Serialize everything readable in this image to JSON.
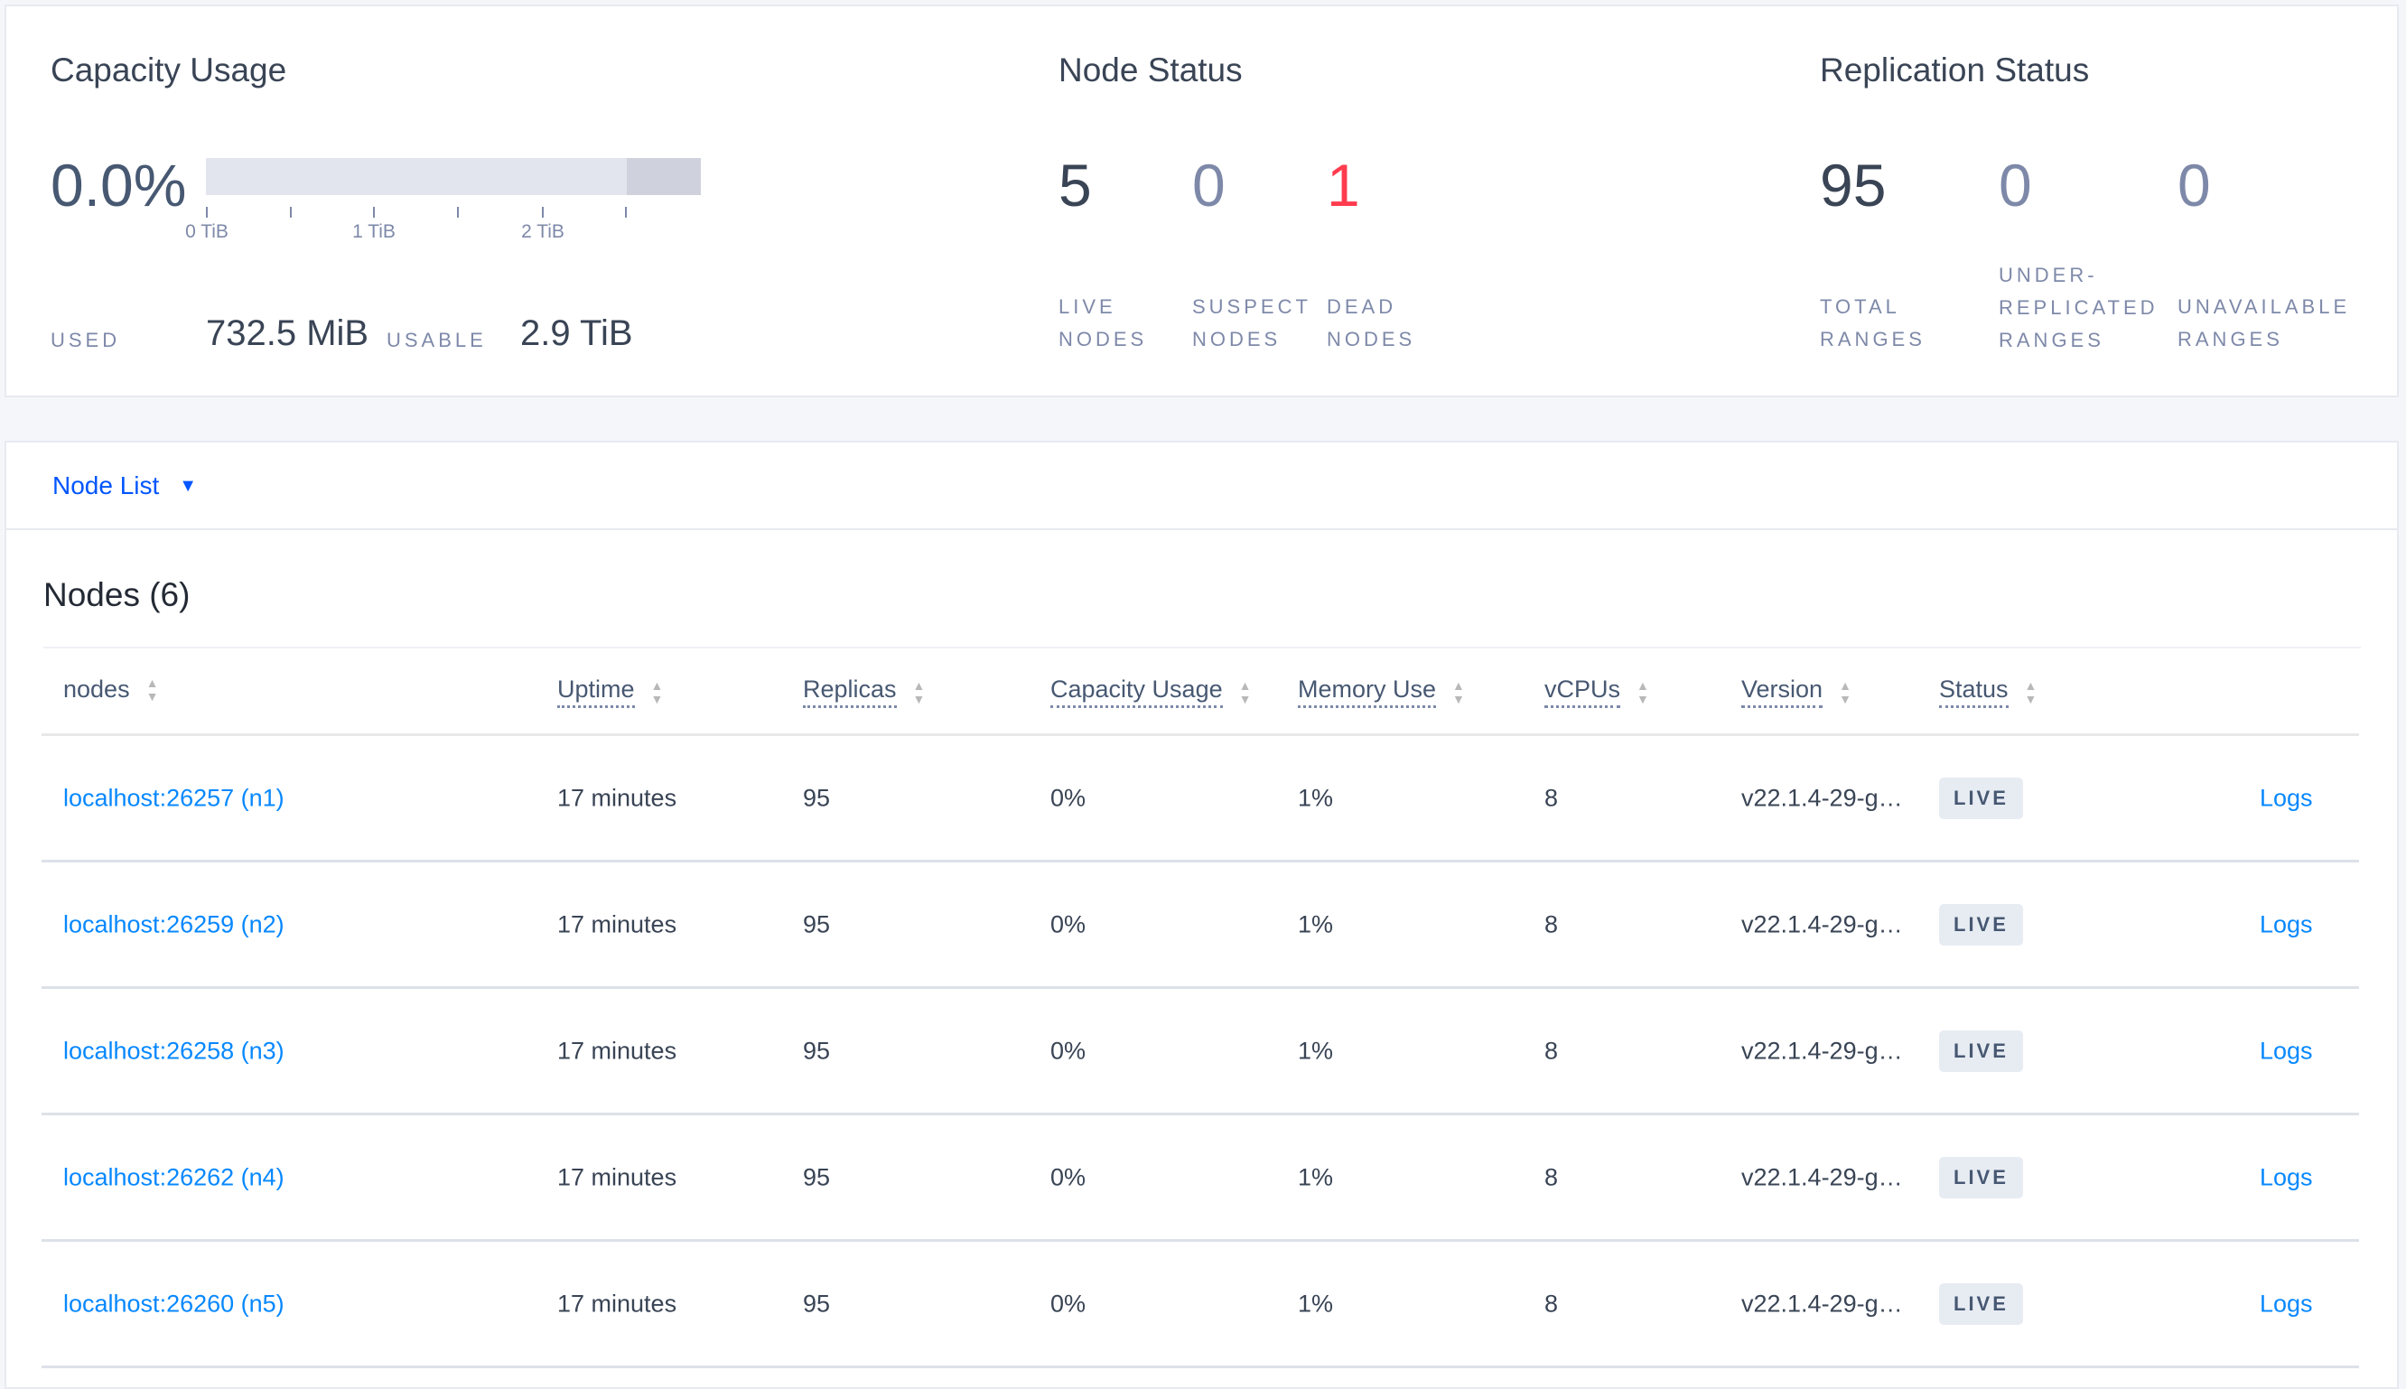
{
  "capacity": {
    "title": "Capacity Usage",
    "percent": "0.0%",
    "used_fraction": 0.0,
    "ticks": [
      "0 TiB",
      "1 TiB",
      "2 TiB"
    ],
    "used_label": "USED",
    "used_value": "732.5 MiB",
    "usable_label": "USABLE",
    "usable_value": "2.9 TiB"
  },
  "node_status": {
    "title": "Node Status",
    "live": "5",
    "live_l1": "LIVE",
    "live_l2": "NODES",
    "suspect": "0",
    "suspect_l1": "SUSPECT",
    "suspect_l2": "NODES",
    "dead": "1",
    "dead_l1": "DEAD",
    "dead_l2": "NODES",
    "dead_color": "#ff3b4e"
  },
  "replication": {
    "title": "Replication Status",
    "total": "95",
    "total_l1": "TOTAL",
    "total_l2": "RANGES",
    "under": "0",
    "under_l1": "UNDER-",
    "under_l2": "REPLICATED",
    "under_l3": "RANGES",
    "unavail": "0",
    "unavail_l1": "UNAVAILABLE",
    "unavail_l2": "RANGES"
  },
  "node_list": {
    "dropdown": "Node List",
    "heading": "Nodes (6)",
    "columns": [
      "nodes",
      "Uptime",
      "Replicas",
      "Capacity Usage",
      "Memory Use",
      "vCPUs",
      "Version",
      "Status"
    ],
    "rows": [
      {
        "node": "localhost:26257 (n1)",
        "uptime": "17 minutes",
        "replicas": "95",
        "capacity": "0%",
        "memory": "1%",
        "vcpus": "8",
        "version": "v22.1.4-29-g…",
        "status": "LIVE",
        "logs": "Logs"
      },
      {
        "node": "localhost:26259 (n2)",
        "uptime": "17 minutes",
        "replicas": "95",
        "capacity": "0%",
        "memory": "1%",
        "vcpus": "8",
        "version": "v22.1.4-29-g…",
        "status": "LIVE",
        "logs": "Logs"
      },
      {
        "node": "localhost:26258 (n3)",
        "uptime": "17 minutes",
        "replicas": "95",
        "capacity": "0%",
        "memory": "1%",
        "vcpus": "8",
        "version": "v22.1.4-29-g…",
        "status": "LIVE",
        "logs": "Logs"
      },
      {
        "node": "localhost:26262 (n4)",
        "uptime": "17 minutes",
        "replicas": "95",
        "capacity": "0%",
        "memory": "1%",
        "vcpus": "8",
        "version": "v22.1.4-29-g…",
        "status": "LIVE",
        "logs": "Logs"
      },
      {
        "node": "localhost:26260 (n5)",
        "uptime": "17 minutes",
        "replicas": "95",
        "capacity": "0%",
        "memory": "1%",
        "vcpus": "8",
        "version": "v22.1.4-29-g…",
        "status": "LIVE",
        "logs": "Logs"
      }
    ]
  }
}
